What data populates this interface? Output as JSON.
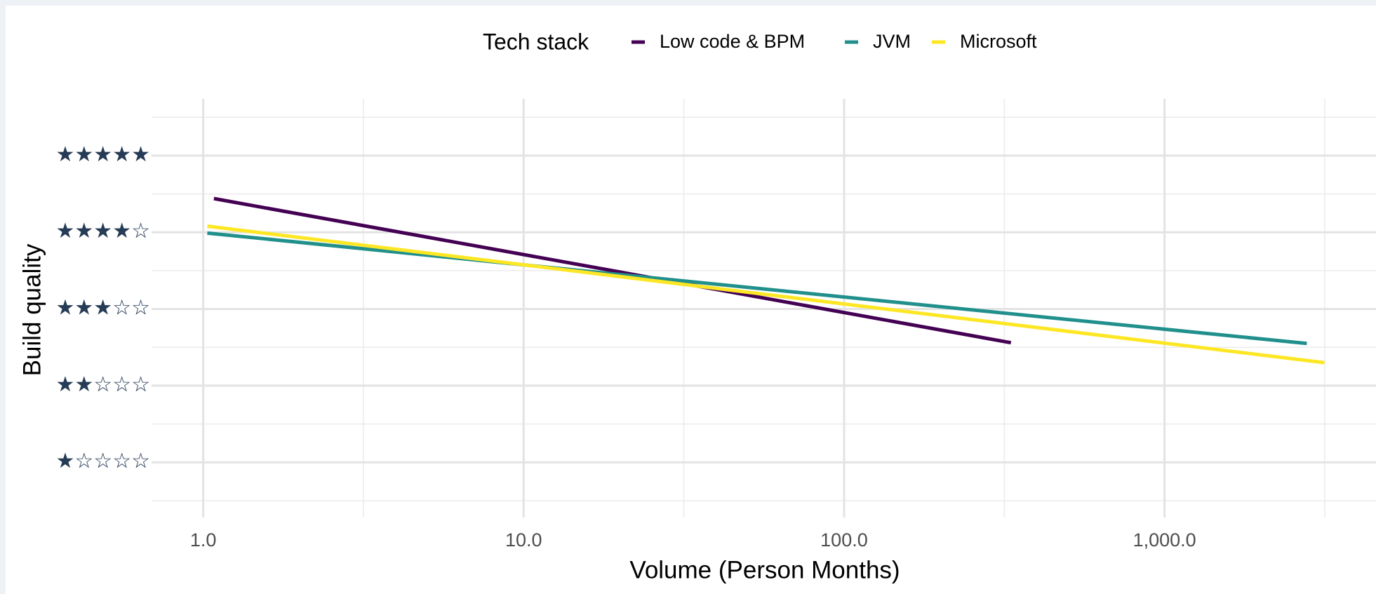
{
  "chart_data": {
    "type": "line",
    "legend_title": "Tech stack",
    "legend_position": "top",
    "x_label": "Volume (Person Months)",
    "y_label": "Build quality",
    "log_x": true,
    "grid": true,
    "xlim": [
      0.69,
      4570
    ],
    "xticks": [
      {
        "value": 1,
        "label": "1.0"
      },
      {
        "value": 10,
        "label": "10.0"
      },
      {
        "value": 100,
        "label": "100.0"
      },
      {
        "value": 1000,
        "label": "1,000.0"
      }
    ],
    "xminor": [
      3.162,
      31.62,
      316.2,
      3162
    ],
    "ylim": [
      0.28,
      5.74
    ],
    "yticks": [
      {
        "value": 1,
        "label": "★☆☆☆☆"
      },
      {
        "value": 2,
        "label": "★★☆☆☆"
      },
      {
        "value": 3,
        "label": "★★★☆☆"
      },
      {
        "value": 4,
        "label": "★★★★☆"
      },
      {
        "value": 5,
        "label": "★★★★★"
      }
    ],
    "yminor": [
      0.5,
      1.5,
      2.5,
      3.5,
      4.5,
      5.5
    ],
    "series": [
      {
        "name": "Low code & BPM",
        "color": "#440154",
        "x": [
          1.08,
          331.6
        ],
        "values": [
          4.44,
          2.56
        ]
      },
      {
        "name": "JVM",
        "color": "#21908c",
        "x": [
          1.03,
          2780
        ],
        "values": [
          3.99,
          2.55
        ]
      },
      {
        "name": "Microsoft",
        "color": "#fde725",
        "x": [
          1.03,
          3155
        ],
        "values": [
          4.08,
          2.3
        ]
      }
    ]
  }
}
